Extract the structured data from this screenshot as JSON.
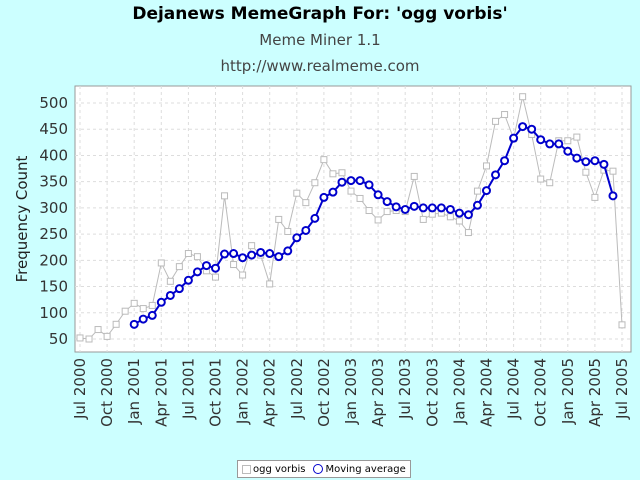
{
  "header": {
    "title": "Dejanews MemeGraph For: 'ogg vorbis'",
    "subtitle": "Meme Miner 1.1",
    "url": "http://www.realmeme.com"
  },
  "colors": {
    "background": "#ccffff",
    "raw_series": "#bbbbbb",
    "moving_average": "#0000cc"
  },
  "chart_data": {
    "type": "line",
    "ylabel": "Frequency Count",
    "ylim": [
      30,
      530
    ],
    "yticks": [
      50,
      100,
      150,
      200,
      250,
      300,
      350,
      400,
      450,
      500
    ],
    "xlim": [
      0,
      60
    ],
    "xticks": [
      {
        "i": 0,
        "label": "Jul 2000"
      },
      {
        "i": 3,
        "label": "Oct 2000"
      },
      {
        "i": 6,
        "label": "Jan 2001"
      },
      {
        "i": 9,
        "label": "Apr 2001"
      },
      {
        "i": 12,
        "label": "Jul 2001"
      },
      {
        "i": 15,
        "label": "Oct 2001"
      },
      {
        "i": 18,
        "label": "Jan 2002"
      },
      {
        "i": 21,
        "label": "Apr 2002"
      },
      {
        "i": 24,
        "label": "Jul 2002"
      },
      {
        "i": 27,
        "label": "Oct 2002"
      },
      {
        "i": 30,
        "label": "Jan 2003"
      },
      {
        "i": 33,
        "label": "Apr 2003"
      },
      {
        "i": 36,
        "label": "Jul 2003"
      },
      {
        "i": 39,
        "label": "Oct 2003"
      },
      {
        "i": 42,
        "label": "Jan 2004"
      },
      {
        "i": 45,
        "label": "Apr 2004"
      },
      {
        "i": 48,
        "label": "Jul 2004"
      },
      {
        "i": 51,
        "label": "Oct 2004"
      },
      {
        "i": 54,
        "label": "Jan 2005"
      },
      {
        "i": 57,
        "label": "Apr 2005"
      },
      {
        "i": 60,
        "label": "Jul 2005"
      }
    ],
    "grid": true,
    "legend_position": "bottom",
    "series": [
      {
        "name": "ogg vorbis",
        "start_index": 0,
        "values": [
          52,
          50,
          68,
          55,
          78,
          103,
          118,
          108,
          114,
          195,
          160,
          188,
          213,
          207,
          180,
          168,
          323,
          192,
          172,
          228,
          210,
          155,
          278,
          255,
          328,
          310,
          348,
          392,
          365,
          367,
          332,
          318,
          295,
          277,
          293,
          295,
          293,
          360,
          278,
          288,
          290,
          283,
          275,
          253,
          332,
          380,
          465,
          478,
          432,
          512,
          440,
          355,
          348,
          428,
          428,
          435,
          368,
          320,
          372,
          370,
          77
        ]
      },
      {
        "name": "Moving average",
        "start_index": 6,
        "values": [
          78,
          88,
          95,
          120,
          133,
          146,
          162,
          178,
          190,
          185,
          212,
          213,
          205,
          210,
          215,
          213,
          207,
          218,
          243,
          257,
          280,
          320,
          330,
          349,
          352,
          352,
          344,
          325,
          312,
          302,
          297,
          303,
          300,
          300,
          300,
          297,
          290,
          287,
          305,
          333,
          363,
          390,
          433,
          455,
          450,
          430,
          422,
          422,
          408,
          395,
          388,
          390,
          383,
          323
        ]
      }
    ]
  },
  "legend": {
    "items": [
      "ogg vorbis",
      "Moving average"
    ]
  }
}
